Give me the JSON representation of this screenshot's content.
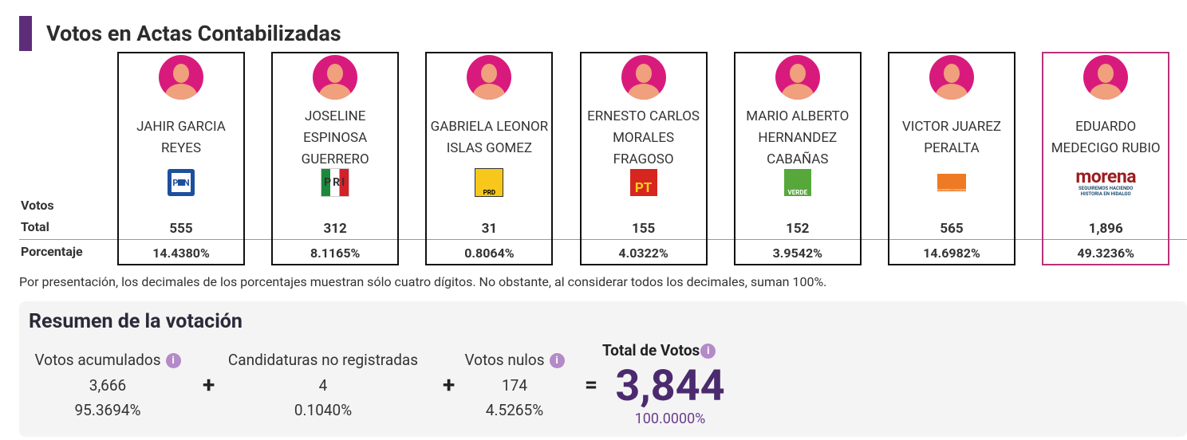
{
  "header": {
    "title": "Votos en Actas Contabilizadas"
  },
  "row_labels": {
    "votos": "Votos",
    "total": "Total",
    "porcentaje": "Porcentaje"
  },
  "candidates": [
    {
      "name": "JAHIR GARCIA REYES",
      "logo": "PAN",
      "votes": "555",
      "percent": "14.4380%"
    },
    {
      "name": "JOSELINE ESPINOSA GUERRERO",
      "logo": "PRI",
      "votes": "312",
      "percent": "8.1165%"
    },
    {
      "name": "GABRIELA LEONOR ISLAS GOMEZ",
      "logo": "PRD",
      "votes": "31",
      "percent": "0.8064%"
    },
    {
      "name": "ERNESTO CARLOS MORALES FRAGOSO",
      "logo": "PT",
      "votes": "155",
      "percent": "4.0322%"
    },
    {
      "name": "MARIO ALBERTO HERNANDEZ CABAÑAS",
      "logo": "VERDE",
      "votes": "152",
      "percent": "3.9542%"
    },
    {
      "name": "VICTOR JUAREZ PERALTA",
      "logo": "MOVIMIENTO CIUDADANO",
      "votes": "565",
      "percent": "14.6982%"
    },
    {
      "name": "EDUARDO MEDECIGO RUBIO",
      "logo": "morena",
      "logo_sub": "SEGUIREMOS HACIENDO HISTORIA EN HIDALGO",
      "votes": "1,896",
      "percent": "49.3236%"
    }
  ],
  "note": "Por presentación, los decimales de los porcentajes muestran sólo cuatro dígitos. No obstante, al considerar todos los decimales, suman 100%.",
  "summary": {
    "title": "Resumen de la votación",
    "items": [
      {
        "label": "Votos acumulados",
        "value": "3,666",
        "percent": "95.3694%"
      },
      {
        "label": "Candidaturas no registradas",
        "value": "4",
        "percent": "0.1040%"
      },
      {
        "label": "Votos nulos",
        "value": "174",
        "percent": "4.5265%"
      }
    ],
    "operators": [
      "+",
      "+",
      "="
    ],
    "total": {
      "label": "Total de Votos",
      "value": "3,844",
      "percent": "100.0000%"
    }
  }
}
